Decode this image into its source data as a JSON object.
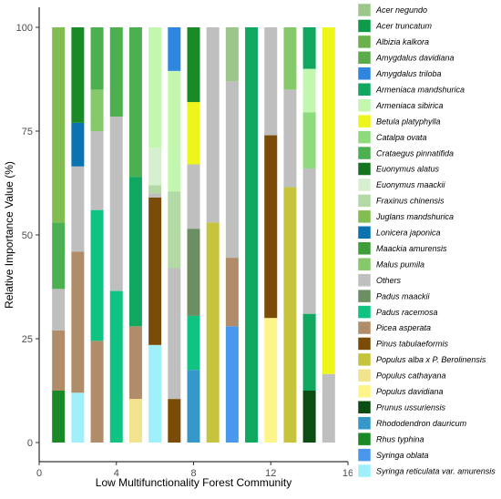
{
  "chart_data": {
    "type": "bar",
    "stacked": true,
    "xlabel": "Low Multifunctionality Forest Community",
    "ylabel": "Relative Importance Value (%)",
    "xlim": [
      0,
      16
    ],
    "ylim": [
      0,
      100
    ],
    "x_ticks": [
      0,
      4,
      8,
      12,
      16
    ],
    "y_ticks": [
      0,
      25,
      50,
      75,
      100
    ],
    "grid": false,
    "legend_position": "right",
    "species": [
      {
        "name": "Acer negundo",
        "color": "#9dc78a"
      },
      {
        "name": "Acer truncatum",
        "color": "#0d9b4a"
      },
      {
        "name": "Albizia kalkora",
        "color": "#6ab04c"
      },
      {
        "name": "Amygdalus davidiana",
        "color": "#5bab4a"
      },
      {
        "name": "Amygdalus triloba",
        "color": "#2e86de"
      },
      {
        "name": "Armeniaca mandshurica",
        "color": "#10a860"
      },
      {
        "name": "Armeniaca sibirica",
        "color": "#c3f7b0"
      },
      {
        "name": "Betula platyphylla",
        "color": "#eef51a"
      },
      {
        "name": "Catalpa ovata",
        "color": "#8edb7e"
      },
      {
        "name": "Crataegus pinnatifida",
        "color": "#4caf50"
      },
      {
        "name": "Euonymus alatus",
        "color": "#15751f"
      },
      {
        "name": "Euonymus maackii",
        "color": "#d6f0cf"
      },
      {
        "name": "Fraxinus chinensis",
        "color": "#b3d9a5"
      },
      {
        "name": "Juglans mandshurica",
        "color": "#82bd52"
      },
      {
        "name": "Lonicera japonica",
        "color": "#0a73b0"
      },
      {
        "name": "Maackia amurensis",
        "color": "#3f9e3a"
      },
      {
        "name": "Malus pumila",
        "color": "#86c96a"
      },
      {
        "name": "Others",
        "color": "#bfbfbf"
      },
      {
        "name": "Padus maackii",
        "color": "#6b8f63"
      },
      {
        "name": "Padus racemosa",
        "color": "#0fc382"
      },
      {
        "name": "Picea asperata",
        "color": "#b08d68"
      },
      {
        "name": "Pinus tabulaeformis",
        "color": "#7b4c07"
      },
      {
        "name": "Populus alba x P. Berolinensis",
        "color": "#c6c33c"
      },
      {
        "name": "Populus cathayana",
        "color": "#f2e38e"
      },
      {
        "name": "Populus davidiana",
        "color": "#fdf58a"
      },
      {
        "name": "Prunus ussuriensis",
        "color": "#0b4d13"
      },
      {
        "name": "Rhododendron dauricum",
        "color": "#3698c9"
      },
      {
        "name": "Rhus typhina",
        "color": "#1a8a26"
      },
      {
        "name": "Syringa oblata",
        "color": "#4a97ee"
      },
      {
        "name": "Syringa reticulata var. amurensis",
        "color": "#9ff0fb"
      }
    ],
    "bars": [
      {
        "x": 1,
        "segments": [
          {
            "species": "Rhus typhina",
            "from": 0,
            "to": 12.5
          },
          {
            "species": "Picea asperata",
            "from": 12.5,
            "to": 27
          },
          {
            "species": "Others",
            "from": 27,
            "to": 37
          },
          {
            "species": "Crataegus pinnatifida",
            "from": 37,
            "to": 53
          },
          {
            "species": "Juglans mandshurica",
            "from": 53,
            "to": 100
          }
        ]
      },
      {
        "x": 2,
        "segments": [
          {
            "species": "Syringa reticulata var. amurensis",
            "from": 0,
            "to": 12
          },
          {
            "species": "Picea asperata",
            "from": 12,
            "to": 46
          },
          {
            "species": "Others",
            "from": 46,
            "to": 66.5
          },
          {
            "species": "Lonicera japonica",
            "from": 66.5,
            "to": 77
          },
          {
            "species": "Rhus typhina",
            "from": 77,
            "to": 100
          }
        ]
      },
      {
        "x": 3,
        "segments": [
          {
            "species": "Picea asperata",
            "from": 0,
            "to": 24.5
          },
          {
            "species": "Padus racemosa",
            "from": 24.5,
            "to": 56
          },
          {
            "species": "Others",
            "from": 56,
            "to": 75
          },
          {
            "species": "Malus pumila",
            "from": 75,
            "to": 85
          },
          {
            "species": "Crataegus pinnatifida",
            "from": 85,
            "to": 100
          }
        ]
      },
      {
        "x": 4,
        "segments": [
          {
            "species": "Padus racemosa",
            "from": 0,
            "to": 36.5
          },
          {
            "species": "Others",
            "from": 36.5,
            "to": 78.5
          },
          {
            "species": "Crataegus pinnatifida",
            "from": 78.5,
            "to": 100
          }
        ]
      },
      {
        "x": 5,
        "segments": [
          {
            "species": "Populus cathayana",
            "from": 0,
            "to": 10.5
          },
          {
            "species": "Picea asperata",
            "from": 10.5,
            "to": 28
          },
          {
            "species": "Armeniaca mandshurica",
            "from": 28,
            "to": 64
          },
          {
            "species": "Crataegus pinnatifida",
            "from": 64,
            "to": 100
          }
        ]
      },
      {
        "x": 6,
        "segments": [
          {
            "species": "Syringa reticulata var. amurensis",
            "from": 0,
            "to": 23.5
          },
          {
            "species": "Pinus tabulaeformis",
            "from": 23.5,
            "to": 59
          },
          {
            "species": "Others",
            "from": 59,
            "to": 60
          },
          {
            "species": "Fraxinus chinensis",
            "from": 60,
            "to": 62
          },
          {
            "species": "Euonymus maackii",
            "from": 62,
            "to": 71
          },
          {
            "species": "Armeniaca sibirica",
            "from": 71,
            "to": 100
          }
        ]
      },
      {
        "x": 7,
        "segments": [
          {
            "species": "Pinus tabulaeformis",
            "from": 0,
            "to": 10.5
          },
          {
            "species": "Others",
            "from": 10.5,
            "to": 42
          },
          {
            "species": "Fraxinus chinensis",
            "from": 42,
            "to": 60.5
          },
          {
            "species": "Armeniaca sibirica",
            "from": 60.5,
            "to": 89.5
          },
          {
            "species": "Amygdalus triloba",
            "from": 89.5,
            "to": 100
          }
        ]
      },
      {
        "x": 8,
        "segments": [
          {
            "species": "Rhododendron dauricum",
            "from": 0,
            "to": 17.5
          },
          {
            "species": "Padus racemosa",
            "from": 17.5,
            "to": 30.5
          },
          {
            "species": "Padus maackii",
            "from": 30.5,
            "to": 51.5
          },
          {
            "species": "Others",
            "from": 51.5,
            "to": 67
          },
          {
            "species": "Betula platyphylla",
            "from": 67,
            "to": 82
          },
          {
            "species": "Rhus typhina",
            "from": 82,
            "to": 100
          }
        ]
      },
      {
        "x": 9,
        "segments": [
          {
            "species": "Populus alba x P. Berolinensis",
            "from": 0,
            "to": 53
          },
          {
            "species": "Others",
            "from": 53,
            "to": 100
          }
        ]
      },
      {
        "x": 10,
        "segments": [
          {
            "species": "Syringa oblata",
            "from": 0,
            "to": 28
          },
          {
            "species": "Picea asperata",
            "from": 28,
            "to": 44.5
          },
          {
            "species": "Others",
            "from": 44.5,
            "to": 87
          },
          {
            "species": "Acer negundo",
            "from": 87,
            "to": 100
          }
        ]
      },
      {
        "x": 11,
        "segments": [
          {
            "species": "Armeniaca mandshurica",
            "from": 0,
            "to": 100
          }
        ]
      },
      {
        "x": 12,
        "segments": [
          {
            "species": "Populus davidiana",
            "from": 0,
            "to": 30
          },
          {
            "species": "Pinus tabulaeformis",
            "from": 30,
            "to": 74
          },
          {
            "species": "Others",
            "from": 74,
            "to": 100
          }
        ]
      },
      {
        "x": 13,
        "segments": [
          {
            "species": "Populus alba x P. Berolinensis",
            "from": 0,
            "to": 61.5
          },
          {
            "species": "Others",
            "from": 61.5,
            "to": 85
          },
          {
            "species": "Malus pumila",
            "from": 85,
            "to": 100
          }
        ]
      },
      {
        "x": 14,
        "segments": [
          {
            "species": "Prunus ussuriensis",
            "from": 0,
            "to": 12.5
          },
          {
            "species": "Armeniaca mandshurica",
            "from": 12.5,
            "to": 31
          },
          {
            "species": "Others",
            "from": 31,
            "to": 66
          },
          {
            "species": "Catalpa ovata",
            "from": 66,
            "to": 79.5
          },
          {
            "species": "Armeniaca sibirica",
            "from": 79.5,
            "to": 90
          },
          {
            "species": "Armeniaca mandshurica",
            "from": 90,
            "to": 100
          }
        ]
      },
      {
        "x": 15,
        "segments": [
          {
            "species": "Others",
            "from": 0,
            "to": 16.5
          },
          {
            "species": "Betula platyphylla",
            "from": 16.5,
            "to": 100
          }
        ]
      }
    ]
  }
}
